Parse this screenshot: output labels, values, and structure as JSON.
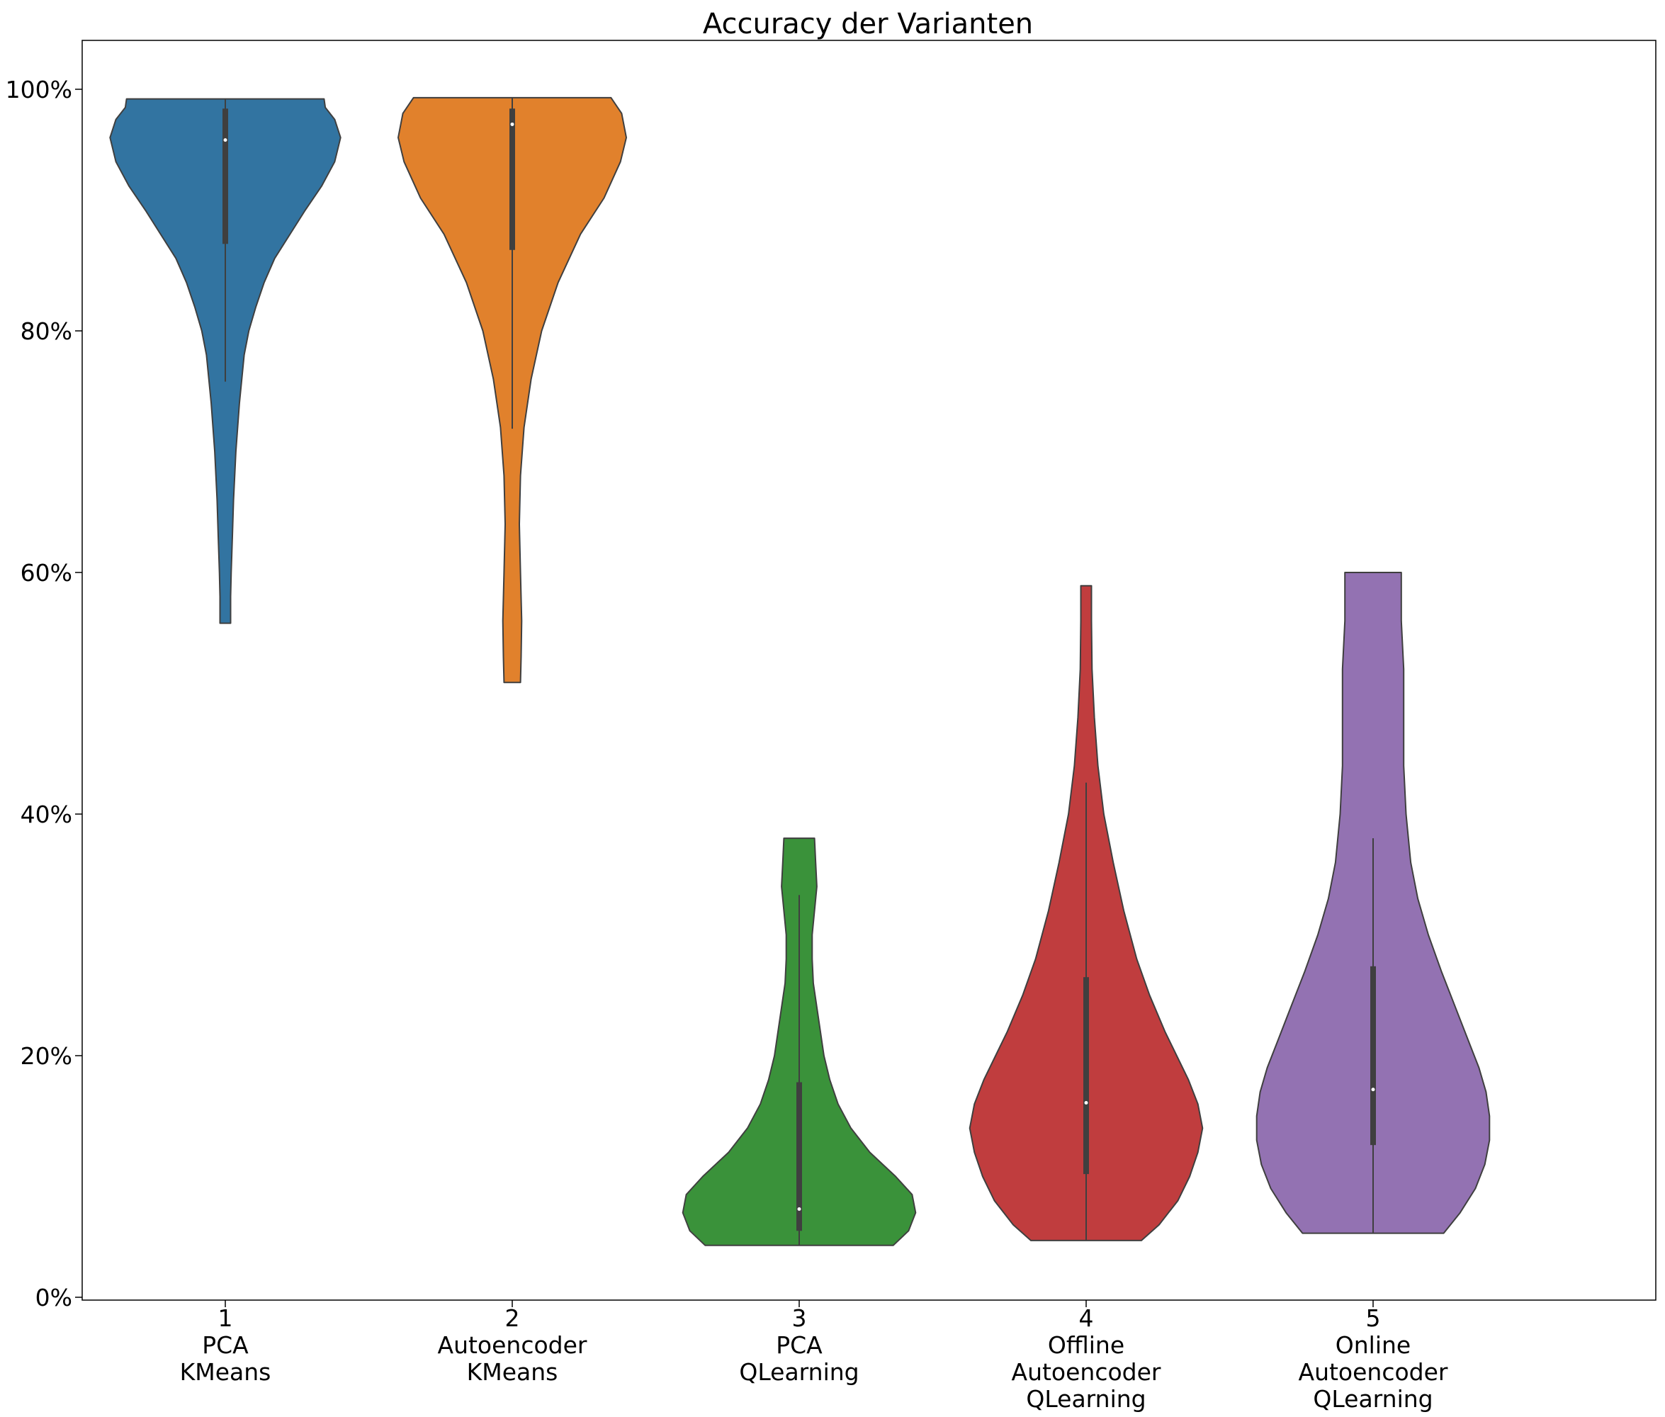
{
  "chart_data": {
    "type": "violin",
    "title": "Accuracy der Varianten",
    "xlabel": "",
    "ylabel": "",
    "ylim": [
      -0.004,
      1.04
    ],
    "y_tick_values": [
      0,
      0.2,
      0.4,
      0.6,
      0.8,
      1.0
    ],
    "y_tick_labels": [
      "0%",
      "20%",
      "40%",
      "60%",
      "80%",
      "100%"
    ],
    "grid": false,
    "legend": "none",
    "categories": [
      {
        "name": "1",
        "lines": [
          "1",
          "PCA",
          "KMeans"
        ]
      },
      {
        "name": "2",
        "lines": [
          "2",
          "Autoencoder",
          "KMeans"
        ]
      },
      {
        "name": "3",
        "lines": [
          "3",
          "PCA",
          "QLearning"
        ]
      },
      {
        "name": "4",
        "lines": [
          "4",
          "Offline",
          "Autoencoder",
          "QLearning"
        ]
      },
      {
        "name": "5",
        "lines": [
          "5",
          "Online",
          "Autoencoder",
          "QLearning"
        ]
      }
    ],
    "violins": [
      {
        "color": "#3274a1",
        "min": 0.558,
        "max": 0.992,
        "q1": 0.872,
        "median": 0.958,
        "q3": 0.984,
        "whisker_low": 0.758,
        "whisker_high": 0.992,
        "density": [
          [
            0.558,
            0.045
          ],
          [
            0.58,
            0.045
          ],
          [
            0.6,
            0.05
          ],
          [
            0.63,
            0.06
          ],
          [
            0.66,
            0.07
          ],
          [
            0.7,
            0.09
          ],
          [
            0.74,
            0.12
          ],
          [
            0.78,
            0.16
          ],
          [
            0.8,
            0.2
          ],
          [
            0.82,
            0.26
          ],
          [
            0.84,
            0.33
          ],
          [
            0.86,
            0.42
          ],
          [
            0.88,
            0.55
          ],
          [
            0.9,
            0.68
          ],
          [
            0.92,
            0.82
          ],
          [
            0.94,
            0.93
          ],
          [
            0.96,
            0.98
          ],
          [
            0.975,
            0.93
          ],
          [
            0.985,
            0.85
          ],
          [
            0.992,
            0.84
          ]
        ]
      },
      {
        "color": "#e1812c",
        "min": 0.509,
        "max": 0.993,
        "q1": 0.867,
        "median": 0.971,
        "q3": 0.984,
        "whisker_low": 0.719,
        "whisker_high": 0.993,
        "density": [
          [
            0.509,
            0.07
          ],
          [
            0.53,
            0.075
          ],
          [
            0.56,
            0.08
          ],
          [
            0.6,
            0.07
          ],
          [
            0.64,
            0.06
          ],
          [
            0.68,
            0.07
          ],
          [
            0.72,
            0.1
          ],
          [
            0.76,
            0.16
          ],
          [
            0.8,
            0.25
          ],
          [
            0.84,
            0.39
          ],
          [
            0.88,
            0.58
          ],
          [
            0.91,
            0.78
          ],
          [
            0.94,
            0.92
          ],
          [
            0.96,
            0.97
          ],
          [
            0.98,
            0.93
          ],
          [
            0.993,
            0.84
          ]
        ]
      },
      {
        "color": "#3a923a",
        "min": 0.043,
        "max": 0.38,
        "q1": 0.055,
        "median": 0.073,
        "q3": 0.178,
        "whisker_low": 0.043,
        "whisker_high": 0.333,
        "density": [
          [
            0.043,
            0.8
          ],
          [
            0.055,
            0.93
          ],
          [
            0.07,
            0.99
          ],
          [
            0.085,
            0.96
          ],
          [
            0.1,
            0.82
          ],
          [
            0.12,
            0.6
          ],
          [
            0.14,
            0.44
          ],
          [
            0.16,
            0.33
          ],
          [
            0.18,
            0.26
          ],
          [
            0.2,
            0.21
          ],
          [
            0.22,
            0.18
          ],
          [
            0.24,
            0.15
          ],
          [
            0.26,
            0.12
          ],
          [
            0.28,
            0.11
          ],
          [
            0.3,
            0.11
          ],
          [
            0.32,
            0.13
          ],
          [
            0.34,
            0.15
          ],
          [
            0.36,
            0.14
          ],
          [
            0.38,
            0.13
          ]
        ]
      },
      {
        "color": "#c03d3e",
        "min": 0.047,
        "max": 0.589,
        "q1": 0.102,
        "median": 0.161,
        "q3": 0.265,
        "whisker_low": 0.047,
        "whisker_high": 0.426,
        "density": [
          [
            0.047,
            0.47
          ],
          [
            0.06,
            0.62
          ],
          [
            0.08,
            0.78
          ],
          [
            0.1,
            0.88
          ],
          [
            0.12,
            0.95
          ],
          [
            0.14,
            0.99
          ],
          [
            0.16,
            0.95
          ],
          [
            0.18,
            0.87
          ],
          [
            0.2,
            0.77
          ],
          [
            0.22,
            0.67
          ],
          [
            0.25,
            0.54
          ],
          [
            0.28,
            0.43
          ],
          [
            0.32,
            0.32
          ],
          [
            0.36,
            0.23
          ],
          [
            0.4,
            0.15
          ],
          [
            0.44,
            0.1
          ],
          [
            0.48,
            0.07
          ],
          [
            0.52,
            0.05
          ],
          [
            0.56,
            0.045
          ],
          [
            0.589,
            0.045
          ]
        ]
      },
      {
        "color": "#9372b2",
        "min": 0.053,
        "max": 0.6,
        "q1": 0.126,
        "median": 0.172,
        "q3": 0.274,
        "whisker_low": 0.053,
        "whisker_high": 0.38,
        "density": [
          [
            0.053,
            0.6
          ],
          [
            0.07,
            0.74
          ],
          [
            0.09,
            0.87
          ],
          [
            0.11,
            0.95
          ],
          [
            0.13,
            0.99
          ],
          [
            0.15,
            0.99
          ],
          [
            0.17,
            0.96
          ],
          [
            0.19,
            0.9
          ],
          [
            0.21,
            0.82
          ],
          [
            0.24,
            0.7
          ],
          [
            0.27,
            0.58
          ],
          [
            0.3,
            0.47
          ],
          [
            0.33,
            0.38
          ],
          [
            0.36,
            0.32
          ],
          [
            0.4,
            0.28
          ],
          [
            0.44,
            0.26
          ],
          [
            0.48,
            0.26
          ],
          [
            0.52,
            0.26
          ],
          [
            0.56,
            0.24
          ],
          [
            0.6,
            0.24
          ]
        ]
      }
    ]
  }
}
